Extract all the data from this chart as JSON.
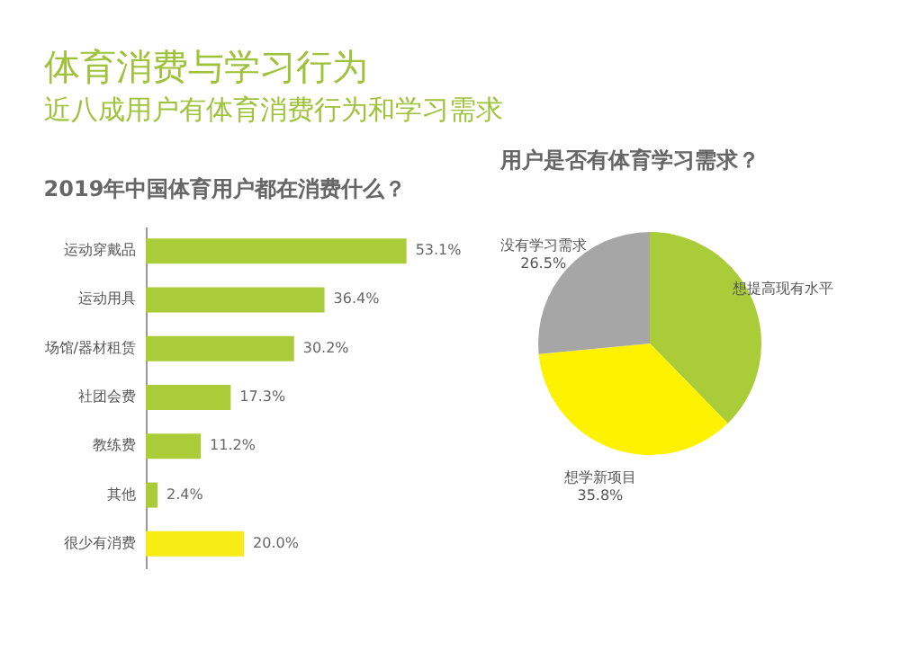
{
  "chart_data": [
    {
      "type": "bar",
      "title": "体育消费与学习行为",
      "subtitle": "近八成用户有体育消费行为和学习需求",
      "annotations": [
        "2019年中国体育用户都在消费什么？"
      ],
      "orientation": "horizontal",
      "categories": [
        "运动穿戴品",
        "运动用具",
        "场馆/器材租赁",
        "社团会费",
        "教练费",
        "其他",
        "很少有消费"
      ],
      "values": [
        53.1,
        36.4,
        30.2,
        17.3,
        11.2,
        2.4,
        20.0
      ],
      "value_labels": [
        "53.1%",
        "36.4%",
        "30.2%",
        "17.3%",
        "11.2%",
        "2.4%",
        "20.0%"
      ],
      "colors": [
        "#a9cc38",
        "#a9cc38",
        "#a9cc38",
        "#a9cc38",
        "#a9cc38",
        "#a9cc38",
        "#f7ec13"
      ]
    },
    {
      "type": "pie",
      "title": "用户是否有体育学习需求？",
      "categories": [
        "想提高现有水平",
        "想学新项目",
        "没有学习需求"
      ],
      "values": [
        37.7,
        35.8,
        26.5
      ],
      "value_labels": [
        null,
        "35.8%",
        "26.5%"
      ],
      "colors": [
        "#a9cc38",
        "#fff200",
        "#a6a6a6"
      ]
    }
  ]
}
